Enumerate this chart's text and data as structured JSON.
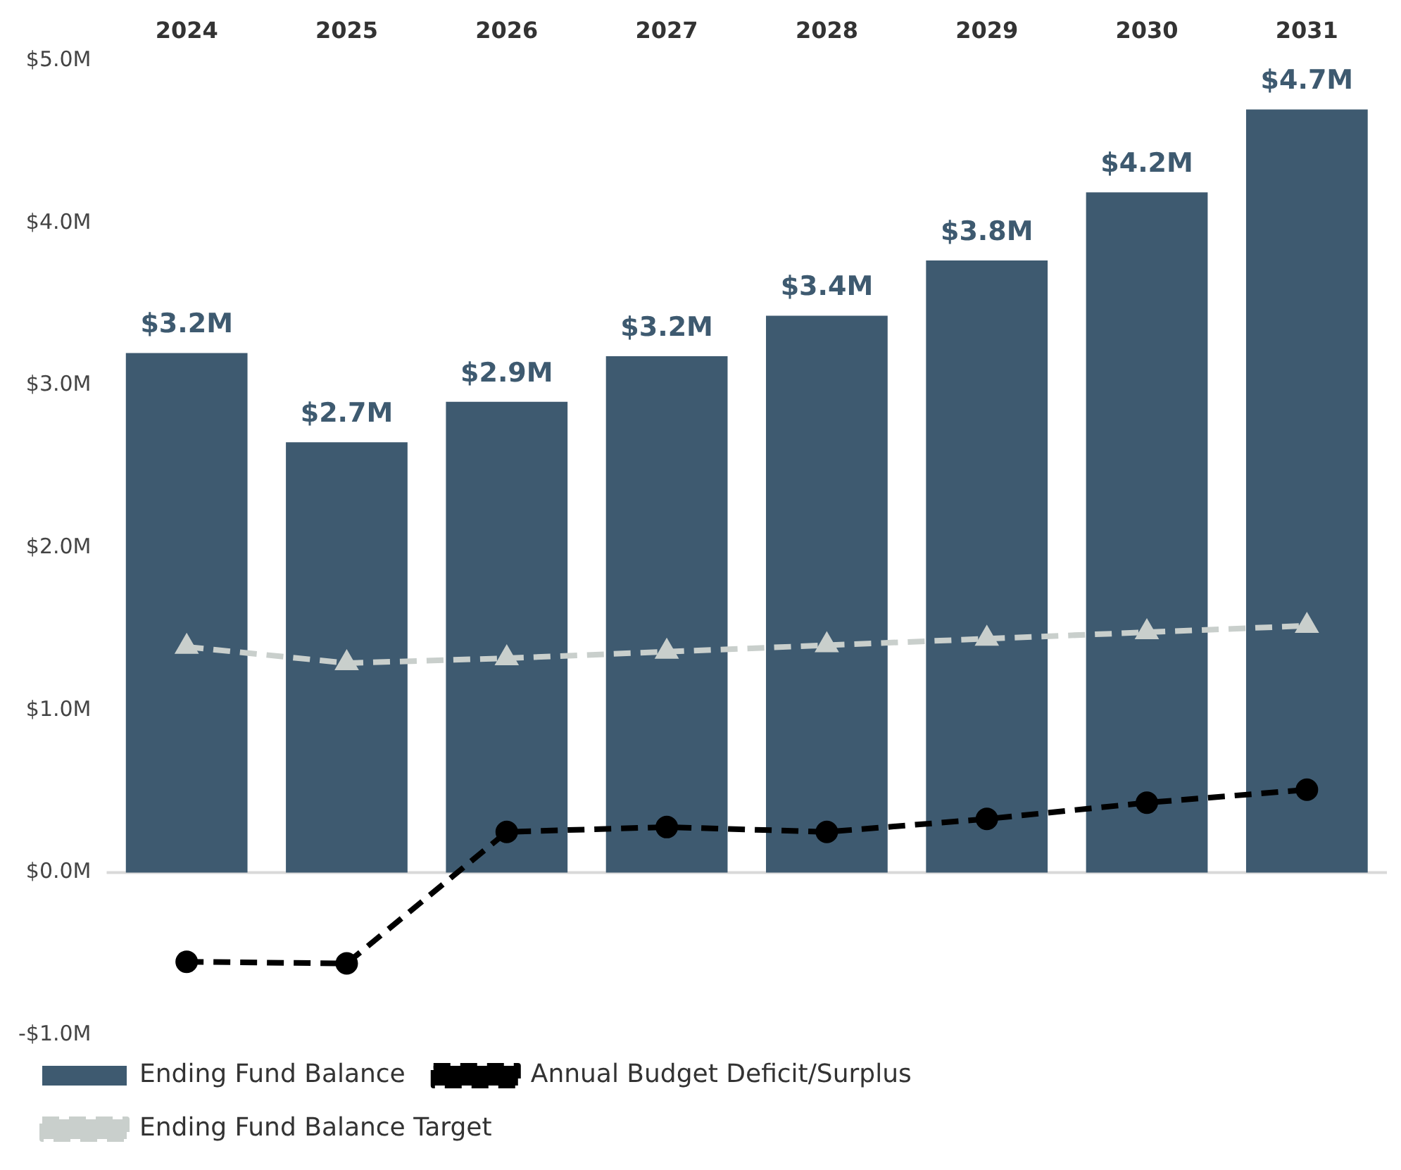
{
  "chart_data": {
    "type": "bar",
    "categories": [
      "2024",
      "2025",
      "2026",
      "2027",
      "2028",
      "2029",
      "2030",
      "2031"
    ],
    "series": [
      {
        "name": "Ending Fund Balance",
        "color": "#3e5a70",
        "values": [
          3.2,
          2.65,
          2.9,
          3.18,
          3.43,
          3.77,
          4.19,
          4.7
        ],
        "value_labels": [
          "$3.2M",
          "$2.7M",
          "$2.9M",
          "$3.2M",
          "$3.4M",
          "$3.8M",
          "$4.2M",
          "$4.7M"
        ]
      },
      {
        "name": "Annual Budget Deficit/Surplus",
        "type": "line",
        "color": "#000000",
        "marker": "circle",
        "line_style": "dashed",
        "values": [
          -0.55,
          -0.56,
          0.25,
          0.28,
          0.25,
          0.33,
          0.43,
          0.51
        ]
      },
      {
        "name": "Ending Fund Balance Target",
        "type": "line",
        "color": "#c9cfcc",
        "marker": "triangle",
        "line_style": "dashed",
        "values": [
          1.39,
          1.29,
          1.32,
          1.36,
          1.4,
          1.44,
          1.48,
          1.52
        ]
      }
    ],
    "ylim": [
      -1,
      5
    ],
    "yticks": [
      {
        "value": -1,
        "label": "-$1.0M"
      },
      {
        "value": 0,
        "label": "$0.0M"
      },
      {
        "value": 1,
        "label": "$1.0M"
      },
      {
        "value": 2,
        "label": "$2.0M"
      },
      {
        "value": 3,
        "label": "$3.0M"
      },
      {
        "value": 4,
        "label": "$4.0M"
      },
      {
        "value": 5,
        "label": "$5.0M"
      }
    ],
    "ref_lines": [
      {
        "axis": "y",
        "value": 0,
        "color": "#d9d9d9"
      }
    ],
    "grid": false,
    "legend": "bottom"
  }
}
